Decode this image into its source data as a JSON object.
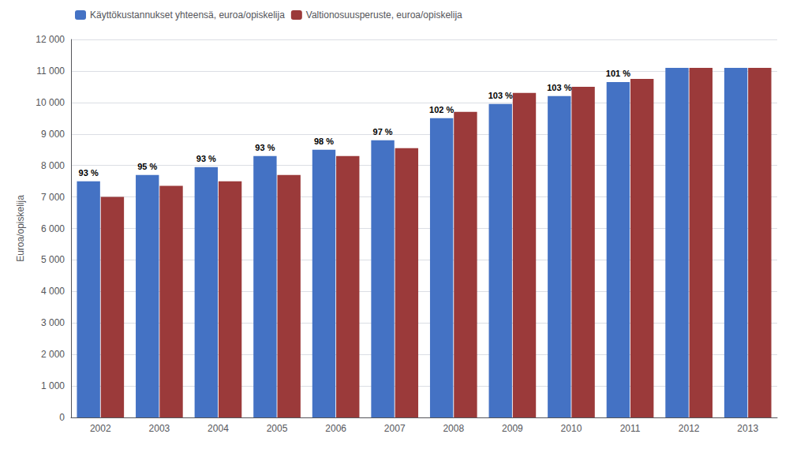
{
  "chart_data": {
    "type": "bar",
    "ylabel": "Euroa/opiskelija",
    "categories": [
      "2002",
      "2003",
      "2004",
      "2005",
      "2006",
      "2007",
      "2008",
      "2009",
      "2010",
      "2011",
      "2012",
      "2013"
    ],
    "series": [
      {
        "name": "Käyttökustannukset yhteensä, euroa/opiskelija",
        "color": "#4472C4",
        "values": [
          7500,
          7700,
          7950,
          8300,
          8500,
          8800,
          9500,
          9950,
          10200,
          10650,
          11100,
          11100
        ],
        "annotations": [
          "93 %",
          "95 %",
          "93 %",
          "93 %",
          "98 %",
          "97 %",
          "102 %",
          "103 %",
          "103 %",
          "101 %",
          null,
          null
        ]
      },
      {
        "name": "Valtionosuusperuste, euroa/opiskelija",
        "color": "#9B3A3A",
        "values": [
          7000,
          7350,
          7500,
          7700,
          8300,
          8550,
          9700,
          10300,
          10500,
          10750,
          11100,
          11100
        ]
      }
    ],
    "ylim": [
      0,
      12000
    ],
    "yticks": [
      0,
      {
        "value": 1000,
        "label": "1 000"
      },
      {
        "value": 2000,
        "label": "2 000"
      },
      {
        "value": 3000,
        "label": "3 000"
      },
      {
        "value": 4000,
        "label": "4 000"
      },
      {
        "value": 5000,
        "label": "5 000"
      },
      {
        "value": 6000,
        "label": "6 000"
      },
      {
        "value": 7000,
        "label": "7 000"
      },
      {
        "value": 8000,
        "label": "8 000"
      },
      {
        "value": 9000,
        "label": "9 000"
      },
      {
        "value": 10000,
        "label": "10 000"
      },
      {
        "value": 11000,
        "label": "11 000"
      },
      {
        "value": 12000,
        "label": "12 000"
      }
    ],
    "grid": true,
    "legend": "upper left"
  }
}
